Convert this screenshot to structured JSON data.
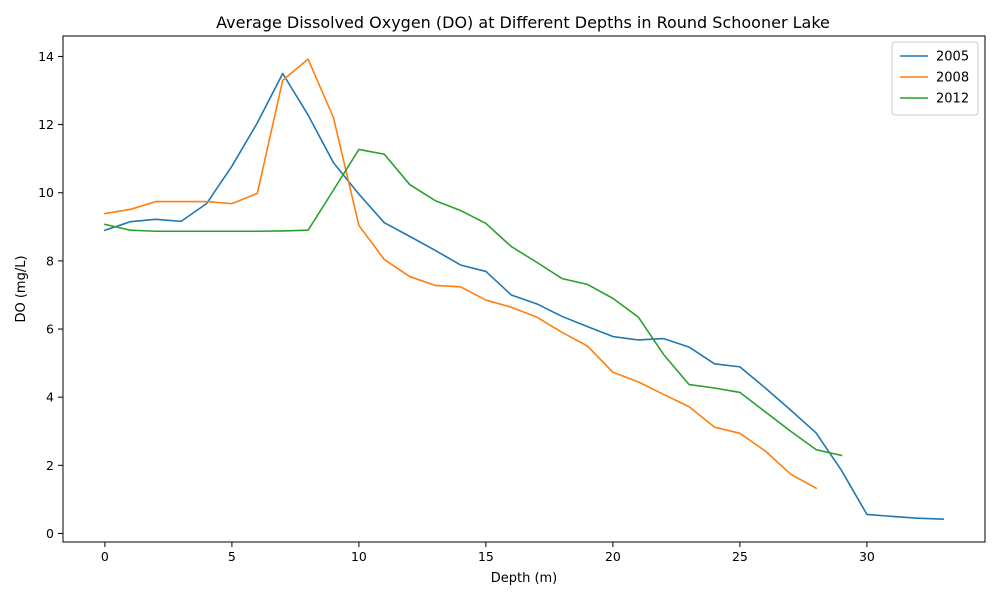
{
  "chart_data": {
    "type": "line",
    "title": "Average Dissolved Oxygen (DO) at Different Depths in Round Schooner Lake",
    "xlabel": "Depth (m)",
    "ylabel": "DO (mg/L)",
    "xlim": [
      -1.65,
      34.65
    ],
    "ylim": [
      -0.25,
      14.6
    ],
    "xticks": [
      0,
      5,
      10,
      15,
      20,
      25,
      30
    ],
    "yticks": [
      0,
      2,
      4,
      6,
      8,
      10,
      12,
      14
    ],
    "grid": false,
    "legend_position": "top-right",
    "series": [
      {
        "name": "2005",
        "color": "#1f77b4",
        "x": [
          0,
          1,
          2,
          3,
          4,
          5,
          6,
          7,
          8,
          9,
          10,
          11,
          12,
          13,
          14,
          15,
          16,
          17,
          18,
          19,
          20,
          21,
          22,
          23,
          24,
          25,
          26,
          27,
          28,
          29,
          30,
          31,
          32,
          33
        ],
        "y": [
          8.9,
          9.15,
          9.22,
          9.16,
          9.68,
          10.78,
          12.05,
          13.5,
          12.28,
          10.88,
          9.96,
          9.12,
          8.72,
          8.31,
          7.88,
          7.69,
          7.0,
          6.74,
          6.37,
          6.07,
          5.78,
          5.68,
          5.72,
          5.47,
          4.98,
          4.89,
          4.27,
          3.62,
          2.95,
          1.85,
          0.56,
          0.5,
          0.45,
          0.42
        ]
      },
      {
        "name": "2008",
        "color": "#ff7f0e",
        "x": [
          0,
          1,
          2,
          3,
          4,
          5,
          6,
          7,
          8,
          9,
          10,
          11,
          12,
          13,
          14,
          15,
          16,
          17,
          18,
          19,
          20,
          21,
          22,
          23,
          24,
          25,
          26,
          27,
          28
        ],
        "y": [
          9.39,
          9.51,
          9.74,
          9.74,
          9.74,
          9.68,
          9.98,
          13.3,
          13.92,
          12.2,
          9.04,
          8.04,
          7.54,
          7.28,
          7.24,
          6.85,
          6.64,
          6.35,
          5.9,
          5.5,
          4.73,
          4.45,
          4.08,
          3.72,
          3.12,
          2.94,
          2.42,
          1.74,
          1.33
        ]
      },
      {
        "name": "2012",
        "color": "#2ca02c",
        "x": [
          0,
          1,
          2,
          3,
          4,
          5,
          6,
          7,
          8,
          9,
          10,
          11,
          12,
          13,
          14,
          15,
          16,
          17,
          18,
          19,
          20,
          21,
          22,
          23,
          24,
          25,
          26,
          27,
          28,
          29
        ],
        "y": [
          9.07,
          8.9,
          8.87,
          8.87,
          8.87,
          8.87,
          8.87,
          8.88,
          8.9,
          10.08,
          11.27,
          11.13,
          10.24,
          9.77,
          9.48,
          9.1,
          8.42,
          7.96,
          7.48,
          7.31,
          6.9,
          6.35,
          5.25,
          4.37,
          4.27,
          4.14,
          3.57,
          3.0,
          2.46,
          2.29
        ]
      }
    ]
  }
}
